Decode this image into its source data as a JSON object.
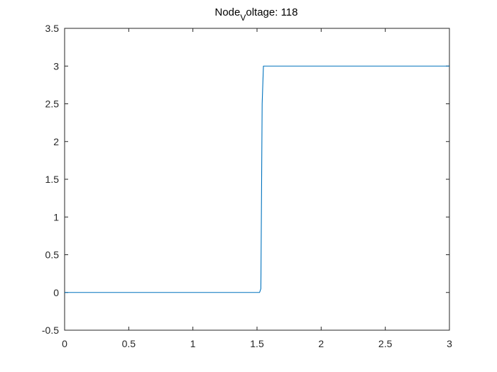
{
  "chart_data": {
    "type": "line",
    "title": {
      "prefix": "Node",
      "subscript": "V",
      "suffix": "oltage: 118"
    },
    "xlabel": "",
    "ylabel": "",
    "xlim": [
      0,
      3
    ],
    "ylim": [
      -0.5,
      3.5
    ],
    "x_ticks": [
      "0",
      "0.5",
      "1",
      "1.5",
      "2",
      "2.5",
      "3"
    ],
    "y_ticks": [
      "-0.5",
      "0",
      "0.5",
      "1",
      "1.5",
      "2",
      "2.5",
      "3",
      "3.5"
    ],
    "grid": false,
    "series": [
      {
        "color": "#0072BD",
        "x": [
          0,
          1.52,
          1.53,
          1.54,
          1.55,
          3
        ],
        "y": [
          0,
          0,
          0.05,
          2.5,
          3,
          3
        ]
      }
    ]
  },
  "colors": {
    "axes": "#262626",
    "line": "#0072BD",
    "background": "#ffffff"
  }
}
